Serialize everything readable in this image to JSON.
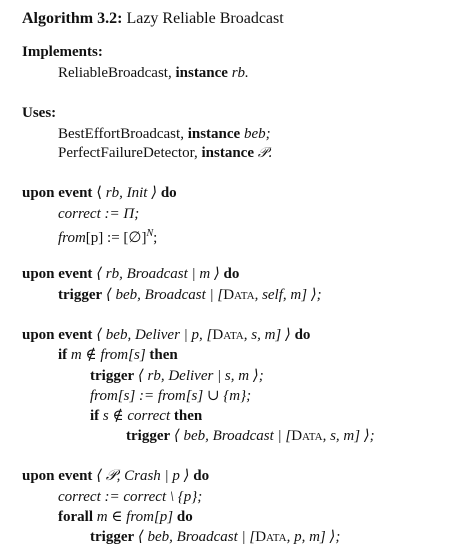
{
  "algorithm": {
    "label": "Algorithm 3.2:",
    "name": "Lazy Reliable Broadcast"
  },
  "implements": {
    "heading": "Implements:",
    "abstraction": "ReliableBroadcast,",
    "instance_kw": "instance",
    "instance_name": "rb."
  },
  "uses": {
    "heading": "Uses:",
    "items": [
      {
        "abstraction": "BestEffortBroadcast,",
        "instance_kw": "instance",
        "instance_name": "beb;"
      },
      {
        "abstraction": "PerfectFailureDetector,",
        "instance_kw": "instance",
        "instance_name": "𝒫."
      }
    ]
  },
  "init_handler": {
    "keyword": "upon event",
    "event_pre": "⟨ ",
    "event_inst": "rb",
    "event_post": ", Init ⟩",
    "do": "do",
    "body": [
      {
        "text_italic": "correct",
        "text_rest": " := Π;"
      },
      {
        "text_italic": "from",
        "text_rest": "[p] := [∅]",
        "sup": "N",
        "tail": ";"
      }
    ]
  },
  "broadcast_handler": {
    "keyword": "upon event",
    "event": "⟨ rb, Broadcast | m ⟩",
    "do": "do",
    "trigger_kw": "trigger",
    "trigger_body_1": "⟨ beb, Broadcast | [",
    "data_kw": "Data",
    "trigger_body_2": ", self, m] ⟩;"
  },
  "deliver_handler": {
    "keyword": "upon event",
    "event_1": "⟨ beb, Deliver | p, [",
    "data_kw": "Data",
    "event_2": ", s, m] ⟩",
    "do": "do",
    "if_kw": "if",
    "if_cond": "m ∉ from[s]",
    "then_kw": "then",
    "trigger_kw": "trigger",
    "trigger_deliver": "⟨ rb, Deliver | s, m ⟩;",
    "assign": "from[s] := from[s] ∪ {m};",
    "if2_cond": "s ∉ correct",
    "trigger_bcast_1": "⟨ beb, Broadcast | [",
    "trigger_bcast_2": ", s, m] ⟩;"
  },
  "crash_handler": {
    "keyword": "upon event",
    "event": "⟨ 𝒫, Crash | p ⟩",
    "do": "do",
    "assign": "correct := correct \\ {p};",
    "forall_kw": "forall",
    "forall_cond": "m ∈ from[p]",
    "trigger_kw": "trigger",
    "trigger_bcast_1": "⟨ beb, Broadcast | [",
    "data_kw": "Data",
    "trigger_bcast_2": ", p, m] ⟩;"
  }
}
